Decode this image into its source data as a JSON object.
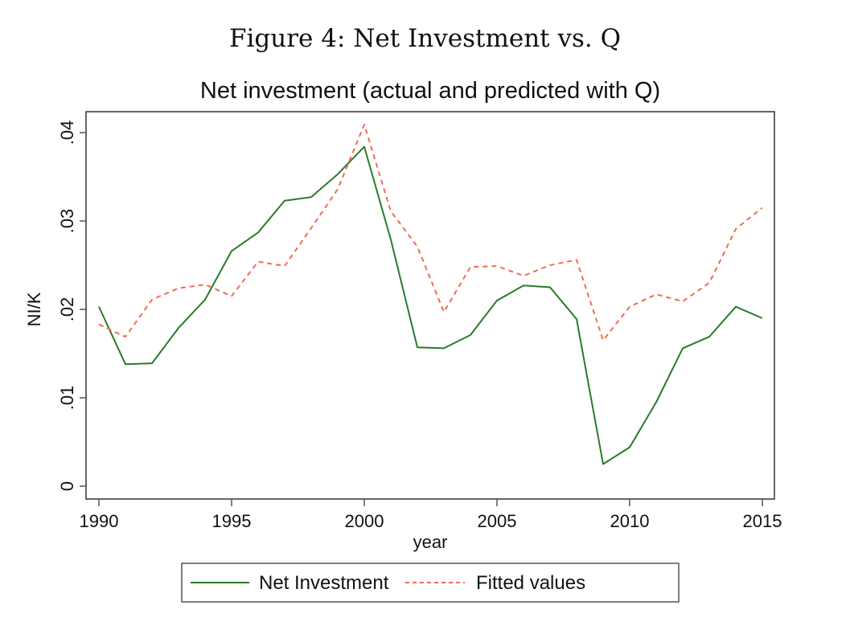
{
  "figure_caption": "Figure 4: Net Investment vs. Q",
  "chart_data": {
    "type": "line",
    "title": "Net investment (actual and predicted with Q)",
    "xlabel": "year",
    "ylabel": "NI/K",
    "xlim": [
      1990,
      2015
    ],
    "ylim": [
      0,
      0.04
    ],
    "x_ticks": [
      1990,
      1995,
      2000,
      2005,
      2010,
      2015
    ],
    "x_tick_labels": [
      "1990",
      "1995",
      "2000",
      "2005",
      "2010",
      "2015"
    ],
    "y_ticks": [
      0,
      0.01,
      0.02,
      0.03,
      0.04
    ],
    "y_tick_labels": [
      "0",
      ".01",
      ".02",
      ".03",
      ".04"
    ],
    "grid": false,
    "legend_position": "bottom",
    "x": [
      1990,
      1991,
      1992,
      1993,
      1994,
      1995,
      1996,
      1997,
      1998,
      1999,
      2000,
      2001,
      2002,
      2003,
      2004,
      2005,
      2006,
      2007,
      2008,
      2009,
      2010,
      2011,
      2012,
      2013,
      2014,
      2015
    ],
    "series": [
      {
        "name": "Net Investment",
        "style": "solid",
        "color": "#2b7a2b",
        "values": [
          0.0203,
          0.0138,
          0.0139,
          0.0179,
          0.0211,
          0.0266,
          0.0287,
          0.0323,
          0.0327,
          0.0353,
          0.0384,
          0.0279,
          0.0157,
          0.0156,
          0.0171,
          0.021,
          0.0227,
          0.0225,
          0.0189,
          0.0025,
          0.0044,
          0.0095,
          0.0156,
          0.0169,
          0.0203,
          0.019
        ]
      },
      {
        "name": "Fitted values",
        "style": "dashed",
        "color": "#f26b50",
        "values": [
          0.0183,
          0.0169,
          0.0211,
          0.0224,
          0.0228,
          0.0215,
          0.0254,
          0.0249,
          0.0292,
          0.0336,
          0.0409,
          0.0311,
          0.0271,
          0.0197,
          0.0248,
          0.0249,
          0.0238,
          0.025,
          0.0256,
          0.0165,
          0.0203,
          0.0217,
          0.0209,
          0.023,
          0.0291,
          0.0315
        ]
      }
    ]
  }
}
